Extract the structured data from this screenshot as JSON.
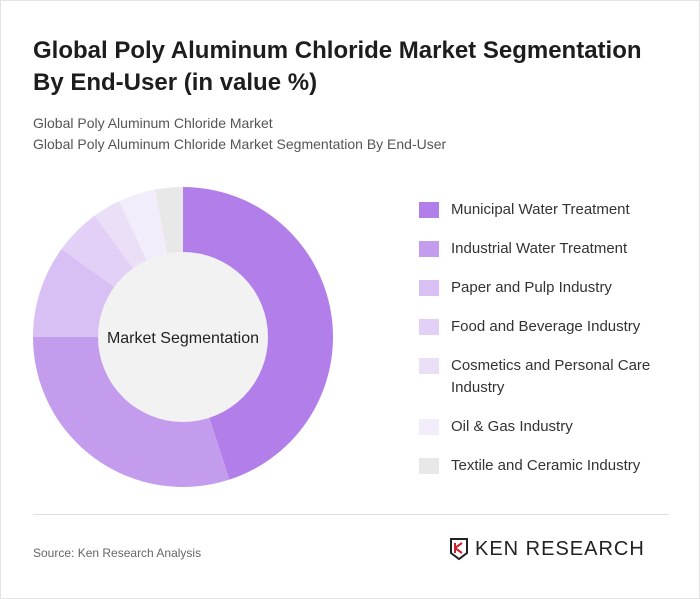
{
  "title": "Global Poly Aluminum Chloride Market Segmentation By End-User (in value %)",
  "subtitle1": "Global Poly Aluminum Chloride Market",
  "subtitle2": "Global Poly Aluminum Chloride Market Segmentation By End-User",
  "source": "Source: Ken Research Analysis",
  "logo_text": "KEN RESEARCH",
  "chart_data": {
    "type": "pie",
    "donut": true,
    "center_label": "Market Segmentation",
    "legend_position": "right",
    "categories": [
      "Municipal Water Treatment",
      "Industrial Water Treatment",
      "Paper and Pulp Industry",
      "Food and Beverage Industry",
      "Cosmetics and Personal Care Industry",
      "Oil & Gas Industry",
      "Textile and Ceramic Industry"
    ],
    "values": [
      45,
      30,
      10,
      5,
      3,
      4,
      3
    ],
    "colors": [
      "#b27fea",
      "#c49cee",
      "#d9c0f4",
      "#e2d0f6",
      "#ebdff8",
      "#f3edfb",
      "#e8e8e8"
    ]
  }
}
